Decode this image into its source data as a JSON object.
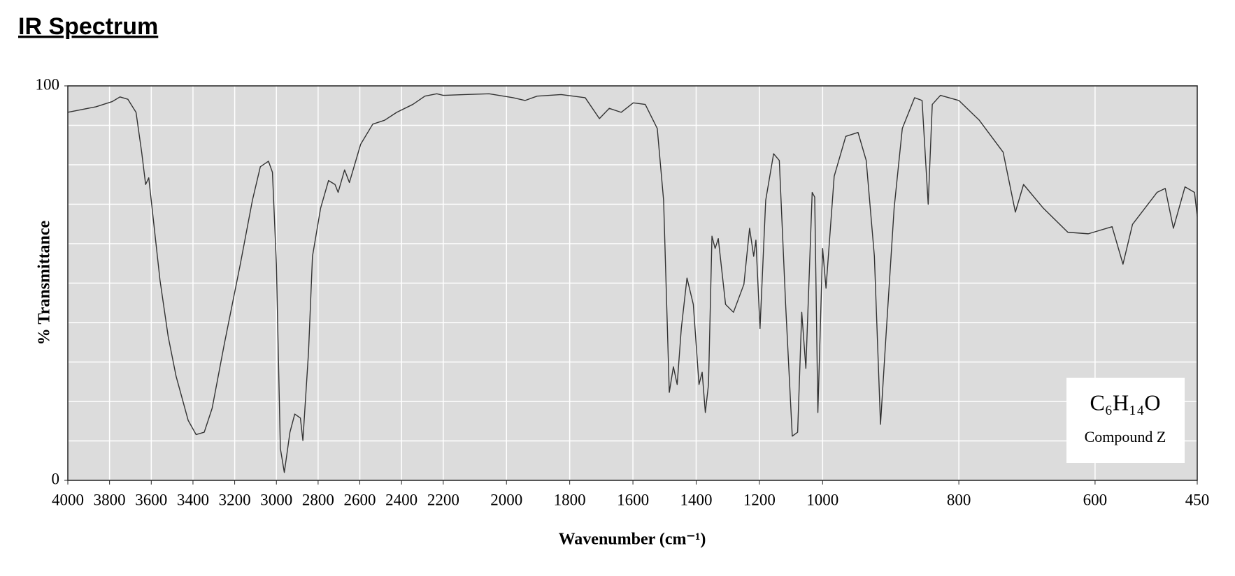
{
  "chart_data": {
    "type": "line",
    "title": "IR Spectrum",
    "xlabel": "Wavenumber (cm⁻¹)",
    "ylabel": "% Transmittance",
    "annotations": [
      "C₆H₁₄O",
      "Compound Z"
    ],
    "x": [
      4000,
      3942,
      3865,
      3788,
      3750,
      3712,
      3673,
      3646,
      3627,
      3612,
      3596,
      3558,
      3519,
      3481,
      3423,
      3385,
      3346,
      3308,
      3250,
      3173,
      3115,
      3077,
      3038,
      3019,
      3000,
      2981,
      2962,
      2935,
      2912,
      2885,
      2873,
      2846,
      2827,
      2788,
      2750,
      2719,
      2704,
      2673,
      2650,
      2596,
      2538,
      2481,
      2423,
      2346,
      2288,
      2231,
      2200,
      2131,
      2055,
      1979,
      1941,
      1903,
      1827,
      1751,
      1706,
      1675,
      1637,
      1599,
      1561,
      1523,
      1503,
      1485,
      1472,
      1460,
      1447,
      1429,
      1409,
      1391,
      1381,
      1371,
      1361,
      1350,
      1340,
      1330,
      1307,
      1282,
      1249,
      1231,
      1218,
      1211,
      1198,
      1180,
      1155,
      1137,
      1117,
      1096,
      1079,
      1066,
      1053,
      1033,
      1025,
      1015,
      1000,
      995,
      983,
      966,
      948,
      936,
      924,
      915,
      907,
      895,
      883,
      865,
      854,
      845,
      839,
      827,
      800,
      770,
      735,
      717,
      705,
      676,
      640,
      610,
      575,
      559,
      545,
      509,
      497,
      485,
      468,
      454,
      450
    ],
    "series": [
      {
        "color": "#333333",
        "values": [
          93.3,
          93.9,
          94.7,
          96,
          97.2,
          96.6,
          93.3,
          83.2,
          75,
          76.7,
          69,
          50.7,
          36.5,
          26.4,
          15.2,
          11.6,
          12.2,
          18.3,
          34.5,
          54.8,
          71,
          79.5,
          80.9,
          78.1,
          54.8,
          8.1,
          2.0,
          12.2,
          16.8,
          15.8,
          10.1,
          32.5,
          56.8,
          69,
          76,
          75,
          73,
          78.7,
          75.5,
          85.2,
          90.3,
          91.3,
          93.3,
          95.3,
          97.4,
          98,
          97.6,
          97.8,
          98,
          97,
          96.3,
          97.4,
          97.8,
          97,
          91.7,
          94.3,
          93.3,
          95.7,
          95.3,
          89.2,
          71,
          22.3,
          28.8,
          24.3,
          38.5,
          51.3,
          44.6,
          24.3,
          27.4,
          17.2,
          24.3,
          61.9,
          58.8,
          61.3,
          44.6,
          42.6,
          49.7,
          63.9,
          56.8,
          60.9,
          38.5,
          71,
          82.8,
          81.1,
          44.6,
          11.2,
          12.2,
          42.6,
          28.4,
          73,
          71.8,
          17.2,
          58.8,
          48.7,
          77.1,
          87.2,
          88.2,
          81.1,
          56.8,
          14.2,
          36.5,
          69,
          89.2,
          97,
          96.3,
          70,
          95.3,
          97.6,
          96.3,
          91.3,
          83.2,
          68,
          75,
          69,
          62.9,
          62.5,
          64.3,
          54.8,
          64.9,
          73,
          74,
          63.9,
          74.4,
          73,
          66.9
        ]
      }
    ],
    "xlim": [
      4000,
      450
    ],
    "xticks": [
      4000,
      3800,
      3600,
      3400,
      3200,
      3000,
      2800,
      2600,
      2400,
      2200,
      2000,
      1800,
      1600,
      1400,
      1200,
      1000,
      800,
      600,
      450
    ],
    "xscale_breaks": [
      2200,
      1000
    ],
    "ylim": [
      0,
      100
    ],
    "yticks": [
      0,
      100
    ],
    "ygrid": [
      10,
      20,
      30,
      40,
      50,
      60,
      70,
      80,
      90
    ],
    "grid": true
  }
}
